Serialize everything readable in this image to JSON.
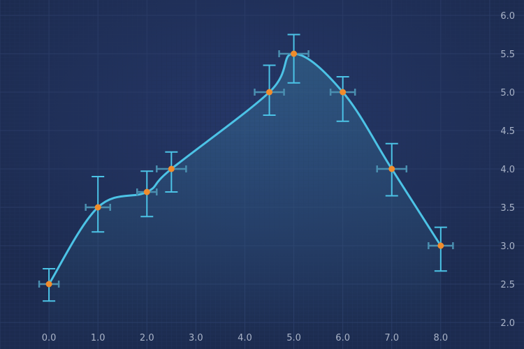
{
  "chart_data": {
    "type": "line",
    "title": "",
    "xlabel": "",
    "ylabel": "",
    "xlim": [
      -1.0,
      9.7
    ],
    "ylim": [
      2.0,
      6.0
    ],
    "x_ticks": [
      0.0,
      1.0,
      2.0,
      3.0,
      4.0,
      5.0,
      6.0,
      7.0,
      8.0
    ],
    "x_tick_labels": [
      "0.0",
      "1.0",
      "2.0",
      "3.0",
      "4.0",
      "5.0",
      "6.0",
      "7.0",
      "8.0"
    ],
    "y_ticks": [
      2.0,
      2.5,
      3.0,
      3.5,
      4.0,
      4.5,
      5.0,
      5.5,
      6.0
    ],
    "y_tick_labels": [
      "2.0",
      "2.5",
      "3.0",
      "3.5",
      "4.0",
      "4.5",
      "5.0",
      "5.5",
      "6.0"
    ],
    "y_axis_position": "right",
    "grid": true,
    "series": [
      {
        "x": [
          0.0,
          1.0,
          2.0,
          2.5,
          4.5,
          5.0,
          6.0,
          7.0,
          8.0
        ],
        "y": [
          2.5,
          3.5,
          3.7,
          4.0,
          5.0,
          5.5,
          5.0,
          4.0,
          3.0
        ],
        "y_error_high": [
          2.7,
          3.9,
          3.97,
          4.22,
          5.35,
          5.75,
          5.2,
          4.33,
          3.24
        ],
        "y_error_low": [
          2.28,
          3.18,
          3.38,
          3.7,
          4.7,
          5.12,
          4.62,
          3.65,
          2.67
        ],
        "x_error": [
          0.2,
          0.25,
          0.2,
          0.3,
          0.3,
          0.3,
          0.25,
          0.3,
          0.25
        ]
      }
    ]
  },
  "colors": {
    "background": "#1c2b4f",
    "background_glow": "#26386a",
    "grid_major": "#2a3b66",
    "grid_minor": "#22325a",
    "line": "#4cc3e6",
    "error_y": "#4cc3e6",
    "error_x": "#4a8fb0",
    "marker": "#f08c2c",
    "area_top": "#3a7ca0",
    "tick_text": "#aab4c8"
  }
}
